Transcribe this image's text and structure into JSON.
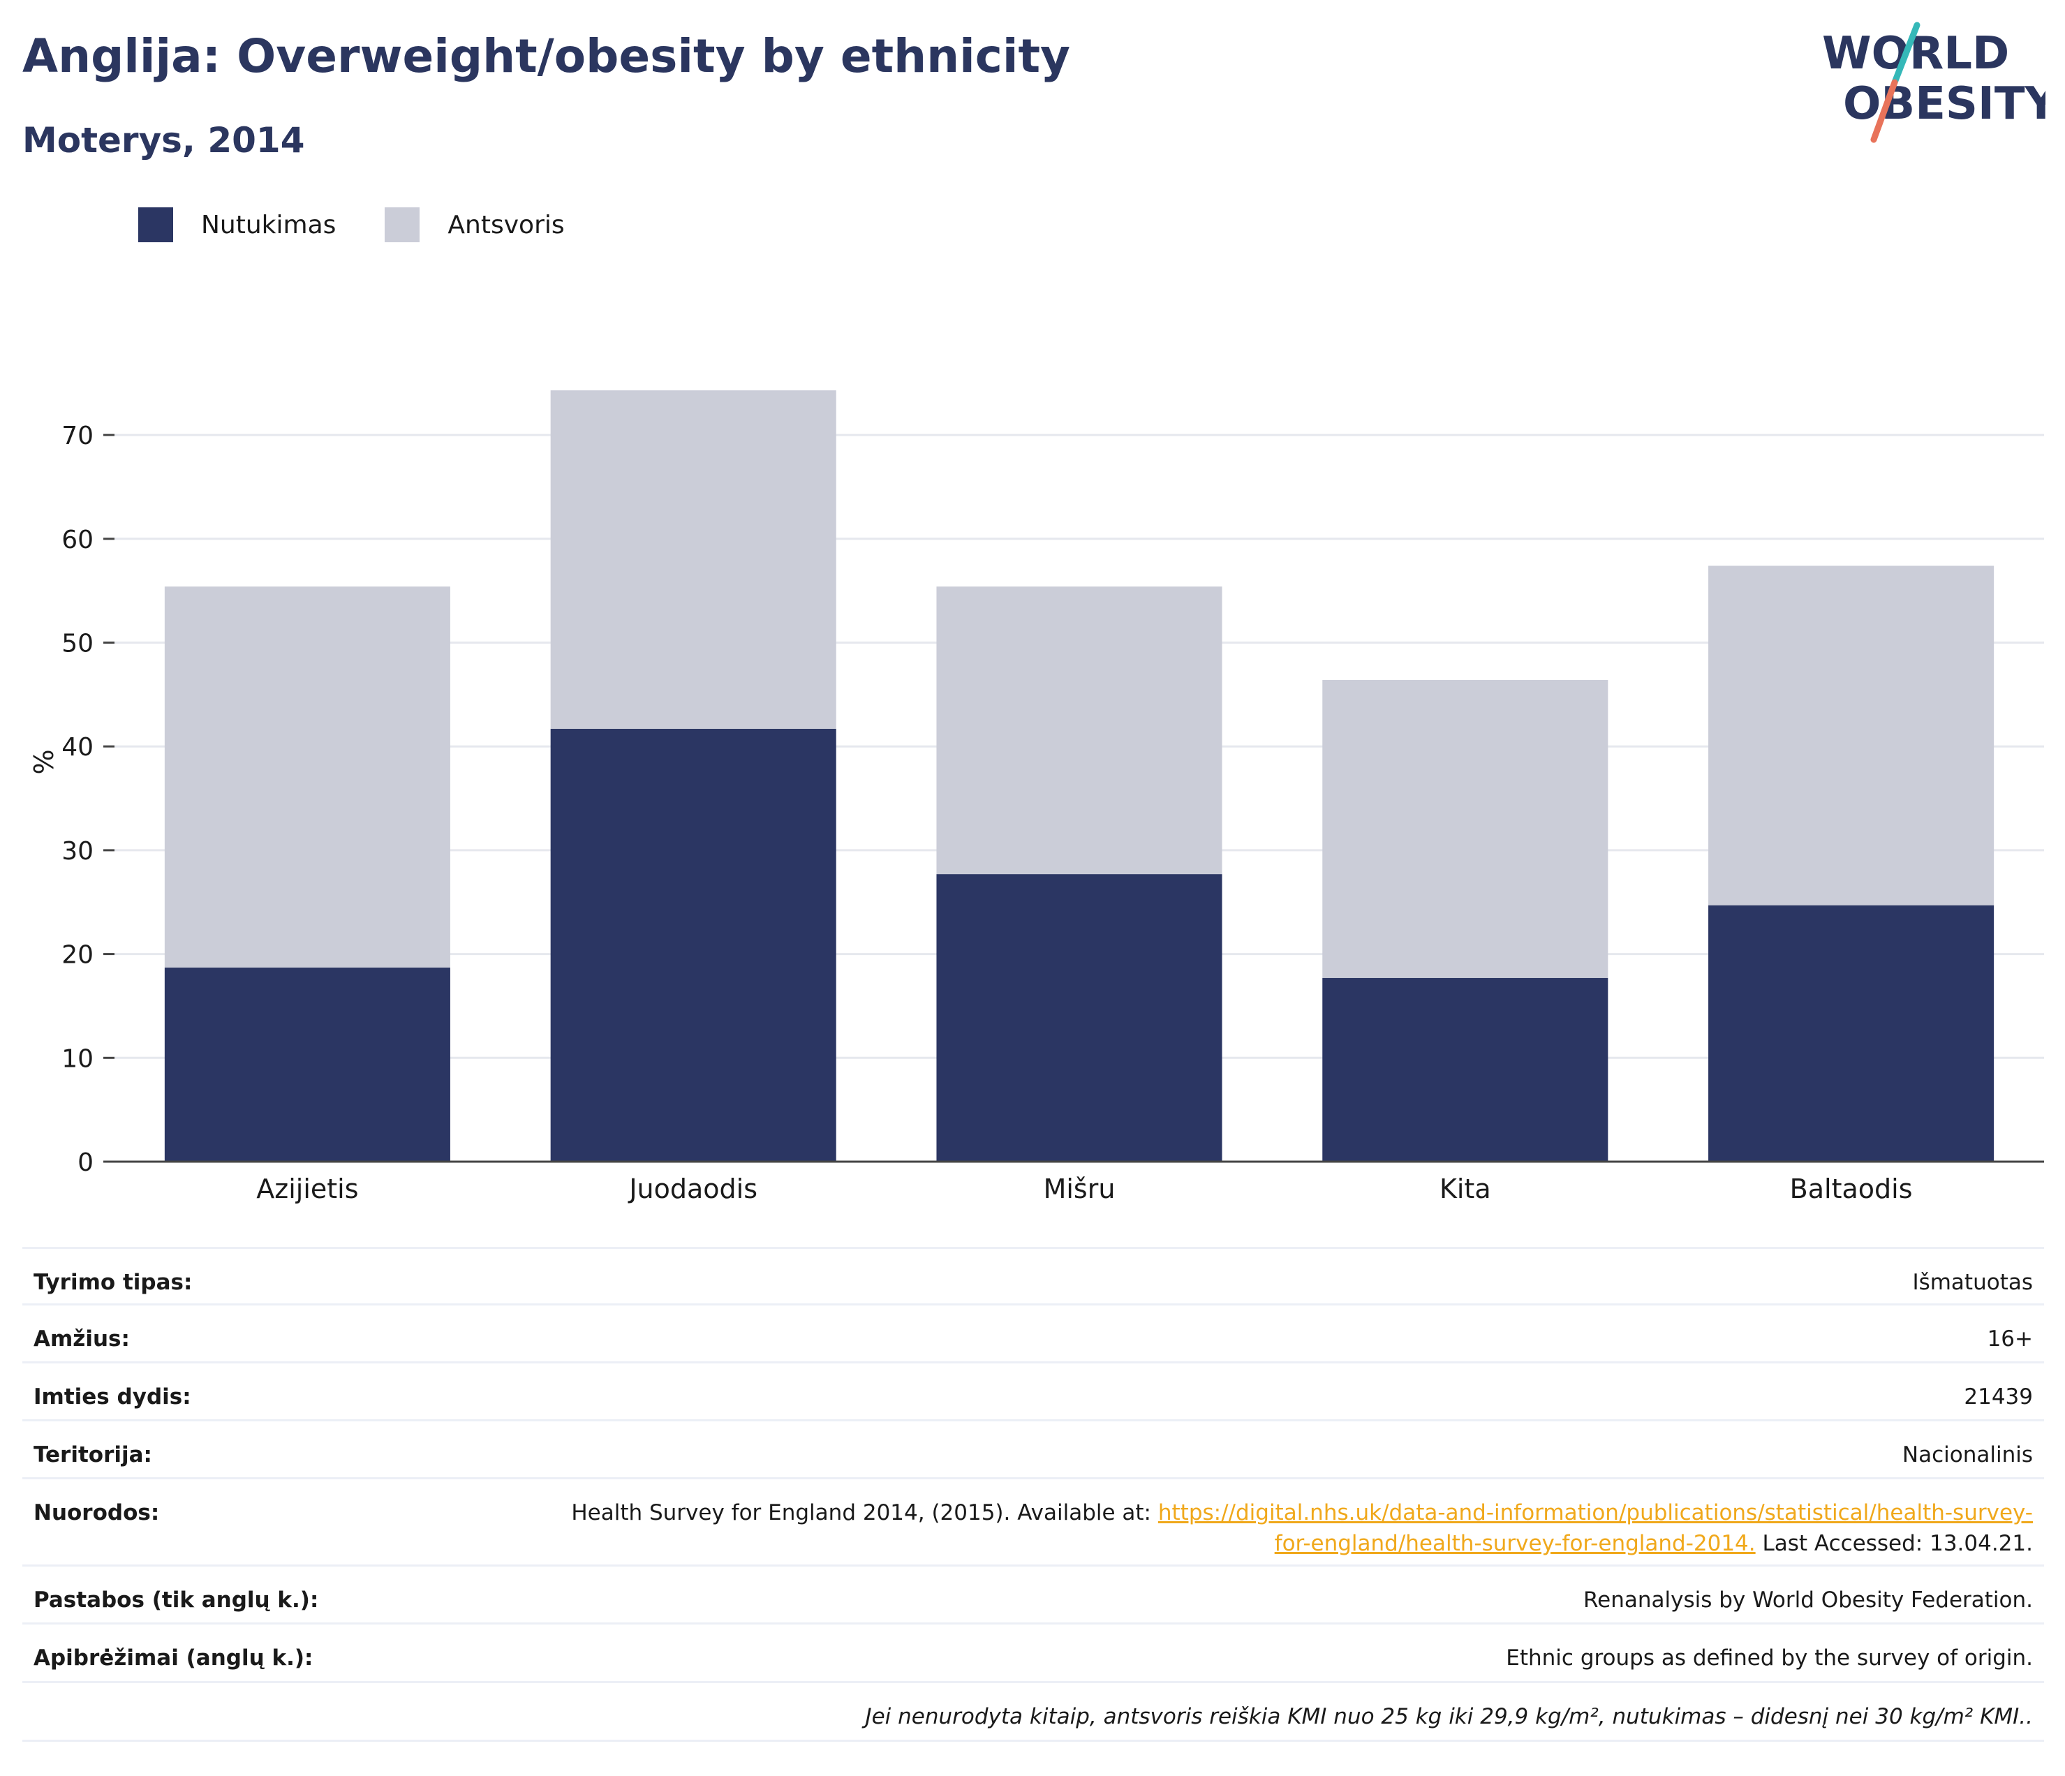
{
  "header": {
    "title": "Anglija: Overweight/obesity by ethnicity",
    "subtitle": "Moterys, 2014",
    "logo_line1": "WORLD",
    "logo_line2": "OBESITY"
  },
  "colors": {
    "title": "#2b365f",
    "obesity": "#2b3663",
    "overweight": "#cbcdd8",
    "gridline": "#e6e8ee",
    "link": "#f0a81b",
    "logo_teal": "#35b8b8",
    "logo_coral": "#e8735a"
  },
  "legend": [
    {
      "label": "Nutukimas",
      "color": "#2b3663"
    },
    {
      "label": "Antsvoris",
      "color": "#cbcdd8"
    }
  ],
  "chart_data": {
    "type": "bar",
    "stacked": true,
    "categories": [
      "Azijietis",
      "Juodaodis",
      "Mišru",
      "Kita",
      "Baltaodis"
    ],
    "series": [
      {
        "name": "Nutukimas",
        "values": [
          18.7,
          41.7,
          27.7,
          17.7,
          24.7
        ]
      },
      {
        "name": "Antsvoris",
        "values": [
          36.7,
          32.6,
          27.7,
          28.7,
          32.7
        ]
      }
    ],
    "ylabel": "%",
    "xlabel": "",
    "ylim": [
      0,
      75
    ],
    "yticks": [
      0,
      10,
      20,
      30,
      40,
      50,
      60,
      70
    ],
    "grid": true,
    "legend_position": "top-left"
  },
  "meta": {
    "survey_type_label": "Tyrimo tipas:",
    "survey_type_value": "Išmatuotas",
    "age_label": "Amžius:",
    "age_value": "16+",
    "sample_label": "Imties dydis:",
    "sample_value": "21439",
    "territory_label": "Teritorija:",
    "territory_value": "Nacionalinis",
    "references_label": "Nuorodos:",
    "references_prefix": "Health Survey for England 2014, (2015). Available at: ",
    "references_link_line1": "https://digital.nhs.uk/data-and-information/publications/statistical/health-survey-",
    "references_link_line2": "for-england/health-survey-for-england-2014.",
    "references_suffix": " Last Accessed: 13.04.21.",
    "notes_label": "Pastabos (tik anglų k.):",
    "notes_value": "Renanalysis by World Obesity Federation.",
    "definitions_label": "Apibrėžimai (anglų k.):",
    "definitions_value": "Ethnic groups as defined by the survey of origin.",
    "footnote": "Jei nenurodyta kitaip, antsvoris reiškia KMI nuo 25 kg iki 29,9 kg/m², nutukimas – didesnį nei 30 kg/m² KMI.."
  }
}
